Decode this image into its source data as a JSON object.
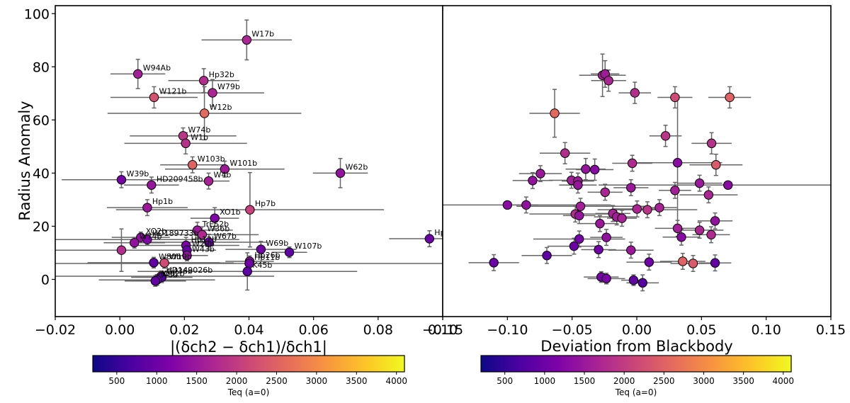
{
  "chart_data": [
    {
      "type": "scatter",
      "panel": "left",
      "xlabel": "|(δch2 − δch1)/δch1|",
      "ylabel": "Radius Anomaly",
      "xlim": [
        -0.02,
        0.1
      ],
      "ylim": [
        -14,
        103
      ],
      "xticks": [
        "−0.02",
        "0.00",
        "0.02",
        "0.04",
        "0.06",
        "0.08",
        "0.10"
      ],
      "xtick_values": [
        -0.02,
        0.0,
        0.02,
        0.04,
        0.06,
        0.08,
        0.1
      ],
      "yticks": [
        "0",
        "20",
        "40",
        "60",
        "80",
        "100"
      ],
      "ytick_values": [
        0,
        20,
        40,
        60,
        80,
        100
      ],
      "color_axis": "Teq (a=0)",
      "points": [
        {
          "label": "W17b",
          "x": 0.0393,
          "y": 90.1,
          "xerr": 0.014,
          "yerr": 7.5,
          "teq": 1700
        },
        {
          "label": "W94Ab",
          "x": 0.0056,
          "y": 77.3,
          "xerr": 0.0085,
          "yerr": 5.5,
          "teq": 1600
        },
        {
          "label": "Hp32b",
          "x": 0.026,
          "y": 74.8,
          "xerr": 0.011,
          "yerr": 4.5,
          "teq": 1800
        },
        {
          "label": "W79b",
          "x": 0.0287,
          "y": 70.2,
          "xerr": 0.016,
          "yerr": 5,
          "teq": 1700
        },
        {
          "label": "W121b",
          "x": 0.0106,
          "y": 68.5,
          "xerr": 0.0135,
          "yerr": 4,
          "teq": 2300
        },
        {
          "label": "W12b",
          "x": 0.0262,
          "y": 62.5,
          "xerr": 0.03,
          "yerr": 10,
          "teq": 2600
        },
        {
          "label": "W74b",
          "x": 0.0196,
          "y": 54.0,
          "xerr": 0.0165,
          "yerr": 3,
          "teq": 1900
        },
        {
          "label": "W1b",
          "x": 0.0204,
          "y": 51.2,
          "xerr": 0.019,
          "yerr": 4,
          "teq": 1850
        },
        {
          "label": "W103b",
          "x": 0.0225,
          "y": 43.1,
          "xerr": 0.01,
          "yerr": 3,
          "teq": 2500
        },
        {
          "label": "W101b",
          "x": 0.0325,
          "y": 41.5,
          "xerr": 0.0185,
          "yerr": 3,
          "teq": 1550
        },
        {
          "label": "W62b",
          "x": 0.0683,
          "y": 40.0,
          "xerr": 0.0085,
          "yerr": 5.5,
          "teq": 1400
        },
        {
          "label": "W39b",
          "x": 0.0005,
          "y": 37.5,
          "xerr": 0.0185,
          "yerr": 3,
          "teq": 1100
        },
        {
          "label": "W4b",
          "x": 0.0275,
          "y": 37.0,
          "xerr": 0.0065,
          "yerr": 3,
          "teq": 1650
        },
        {
          "label": "HD209458b",
          "x": 0.0098,
          "y": 35.5,
          "xerr": 0.0085,
          "yerr": 3,
          "teq": 1450
        },
        {
          "label": "Hp1b",
          "x": 0.0085,
          "y": 27.0,
          "xerr": 0.0125,
          "yerr": 3,
          "teq": 1500
        },
        {
          "label": "Hp7b",
          "x": 0.0403,
          "y": 26.2,
          "xerr": 0.0415,
          "yerr": 14,
          "teq": 2100
        },
        {
          "label": "XO1b",
          "x": 0.0294,
          "y": 23.0,
          "xerr": 0.0075,
          "yerr": 4,
          "teq": 1200
        },
        {
          "label": "TrES2b",
          "x": 0.024,
          "y": 18.5,
          "xerr": 0.011,
          "yerr": 3,
          "teq": 1500
        },
        {
          "label": "W36b",
          "x": 0.0255,
          "y": 16.8,
          "xerr": 0.0175,
          "yerr": 3,
          "teq": 1750
        },
        {
          "label": "XO2b",
          "x": 0.0065,
          "y": 15.8,
          "xerr": 0.009,
          "yerr": 2,
          "teq": 1400
        },
        {
          "label": "HD189733b",
          "x": 0.0085,
          "y": 15.0,
          "xerr": 0.0285,
          "yerr": 2,
          "teq": 1200
        },
        {
          "label": "W67b",
          "x": 0.0276,
          "y": 14.0,
          "xerr": 0.018,
          "yerr": 3,
          "teq": 1000
        },
        {
          "label": "W74b",
          "x": 0.0045,
          "y": 13.8,
          "xerr": 0.0095,
          "yerr": 2,
          "teq": 1400
        },
        {
          "label": "Hp12b",
          "x": 0.0205,
          "y": 12.8,
          "xerr": 0.0165,
          "yerr": 3,
          "teq": 1150
        },
        {
          "label": "W29b",
          "x": 0.0208,
          "y": 11.0,
          "xerr": 0.009,
          "yerr": 3,
          "teq": 950
        },
        {
          "label": "W69b",
          "x": 0.0437,
          "y": 11.3,
          "xerr": 0.011,
          "yerr": 3,
          "teq": 1050
        },
        {
          "label": "W107b",
          "x": 0.0525,
          "y": 10.2,
          "xerr": 0.0055,
          "yerr": 2,
          "teq": 850
        },
        {
          "label": "",
          "x": 0.0005,
          "y": 11.0,
          "xerr": 0.028,
          "yerr": 8,
          "teq": 1800
        },
        {
          "label": "W43b",
          "x": 0.0208,
          "y": 9.0,
          "xerr": 0.0065,
          "yerr": 2,
          "teq": 1400
        },
        {
          "label": "W80b",
          "x": 0.0105,
          "y": 6.3,
          "xerr": 0.0205,
          "yerr": 2,
          "teq": 900
        },
        {
          "label": "W19b",
          "x": 0.0138,
          "y": 6.2,
          "xerr": 0.0215,
          "yerr": 2,
          "teq": 2200
        },
        {
          "label": "Hp26b",
          "x": 0.0402,
          "y": 6.8,
          "xerr": 0.0075,
          "yerr": 2,
          "teq": 1350
        },
        {
          "label": "Hp11b",
          "x": 0.0401,
          "y": 6.0,
          "xerr": 0.08,
          "yerr": 2,
          "teq": 1050
        },
        {
          "label": "K45b",
          "x": 0.0395,
          "y": 3.0,
          "xerr": 0.034,
          "yerr": 7,
          "teq": 850
        },
        {
          "label": "HD149026b",
          "x": 0.0128,
          "y": 1.2,
          "xerr": 0.035,
          "yerr": 2,
          "teq": 1600
        },
        {
          "label": "G436b",
          "x": 0.013,
          "y": 0.8,
          "xerr": 0.0095,
          "yerr": 2,
          "teq": 750
        },
        {
          "label": "W52b",
          "x": 0.0115,
          "y": -0.2,
          "xerr": 0.018,
          "yerr": 2,
          "teq": 1100
        },
        {
          "label": "W8b",
          "x": 0.011,
          "y": -0.6,
          "xerr": 0.0095,
          "yerr": 2,
          "teq": 900
        },
        {
          "label": "Hp",
          "x": 0.0959,
          "y": 15.3,
          "xerr": 0.0125,
          "yerr": 3,
          "teq": 1000
        }
      ]
    },
    {
      "type": "scatter",
      "panel": "right",
      "xlabel": "Deviation from Blackbody",
      "ylabel": "",
      "xlim": [
        -0.15,
        0.15
      ],
      "ylim": [
        -14,
        103
      ],
      "xticks": [
        "−0.15",
        "−0.10",
        "−0.05",
        "0.00",
        "0.05",
        "0.10",
        "0.15"
      ],
      "xtick_values": [
        -0.15,
        -0.1,
        -0.05,
        0.0,
        0.05,
        0.1,
        0.15
      ],
      "color_axis": "Teq (a=0)",
      "points": [
        {
          "x": -0.0265,
          "y": 76.8,
          "xerr": 0.018,
          "yerr": 8,
          "teq": 1600
        },
        {
          "x": -0.0245,
          "y": 77.3,
          "xerr": 0.011,
          "yerr": 5,
          "teq": 1550
        },
        {
          "x": -0.0218,
          "y": 74.8,
          "xerr": 0.0135,
          "yerr": 4,
          "teq": 1700
        },
        {
          "x": -0.0015,
          "y": 70.2,
          "xerr": 0.0125,
          "yerr": 4,
          "teq": 1800
        },
        {
          "x": 0.0295,
          "y": 68.5,
          "xerr": 0.0135,
          "yerr": 4,
          "teq": 2200
        },
        {
          "x": 0.0718,
          "y": 68.5,
          "xerr": 0.0165,
          "yerr": 4,
          "teq": 2500
        },
        {
          "x": -0.0635,
          "y": 62.5,
          "xerr": 0.0195,
          "yerr": 9,
          "teq": 2600
        },
        {
          "x": 0.0222,
          "y": 54.0,
          "xerr": 0.0125,
          "yerr": 4,
          "teq": 1900
        },
        {
          "x": 0.0578,
          "y": 51.2,
          "xerr": 0.0155,
          "yerr": 4,
          "teq": 1850
        },
        {
          "x": -0.0555,
          "y": 47.5,
          "xerr": 0.0195,
          "yerr": 4,
          "teq": 1800
        },
        {
          "x": -0.0035,
          "y": 43.7,
          "xerr": 0.0155,
          "yerr": 3,
          "teq": 1750
        },
        {
          "x": 0.0315,
          "y": 43.9,
          "xerr": 0.0345,
          "yerr": 25,
          "teq": 1300
        },
        {
          "x": 0.0612,
          "y": 43.1,
          "xerr": 0.0205,
          "yerr": 4,
          "teq": 2400
        },
        {
          "x": -0.0395,
          "y": 41.5,
          "xerr": 0.0155,
          "yerr": 4,
          "teq": 1450
        },
        {
          "x": -0.0325,
          "y": 41.3,
          "xerr": 0.0145,
          "yerr": 4,
          "teq": 1300
        },
        {
          "x": -0.0745,
          "y": 39.8,
          "xerr": 0.0165,
          "yerr": 3,
          "teq": 1500
        },
        {
          "x": -0.0805,
          "y": 37.2,
          "xerr": 0.0155,
          "yerr": 3,
          "teq": 1400
        },
        {
          "x": -0.0505,
          "y": 37.3,
          "xerr": 0.0175,
          "yerr": 3,
          "teq": 1600
        },
        {
          "x": -0.0455,
          "y": 37.0,
          "xerr": 0.0125,
          "yerr": 3,
          "teq": 1550
        },
        {
          "x": -0.0455,
          "y": 35.5,
          "xerr": 0.0145,
          "yerr": 3,
          "teq": 1450
        },
        {
          "x": 0.0485,
          "y": 36.2,
          "xerr": 0.0175,
          "yerr": 3,
          "teq": 1500
        },
        {
          "x": -0.0045,
          "y": 34.5,
          "xerr": 0.0135,
          "yerr": 3,
          "teq": 1500
        },
        {
          "x": -0.0245,
          "y": 32.8,
          "xerr": 0.0135,
          "yerr": 3,
          "teq": 1700
        },
        {
          "x": 0.0295,
          "y": 33.5,
          "xerr": 0.0125,
          "yerr": 3,
          "teq": 1600
        },
        {
          "x": 0.0555,
          "y": 31.8,
          "xerr": 0.0225,
          "yerr": 3,
          "teq": 1700
        },
        {
          "x": -0.0855,
          "y": 28.0,
          "xerr": 0.0095,
          "yerr": 3,
          "teq": 1400
        },
        {
          "x": -0.0435,
          "y": 27.5,
          "xerr": 0.0495,
          "yerr": 3,
          "teq": 1600
        },
        {
          "x": 0.0002,
          "y": 26.5,
          "xerr": 0.0195,
          "yerr": 3,
          "teq": 1700
        },
        {
          "x": 0.0082,
          "y": 26.2,
          "xerr": 0.0385,
          "yerr": 3,
          "teq": 1900
        },
        {
          "x": 0.0175,
          "y": 27.0,
          "xerr": 0.0135,
          "yerr": 3,
          "teq": 1650
        },
        {
          "x": -0.0475,
          "y": 24.6,
          "xerr": 0.0355,
          "yerr": 3,
          "teq": 1800
        },
        {
          "x": -0.0445,
          "y": 24.0,
          "xerr": 0.0125,
          "yerr": 3,
          "teq": 1450
        },
        {
          "x": -0.0185,
          "y": 24.8,
          "xerr": 0.0135,
          "yerr": 3,
          "teq": 1650
        },
        {
          "x": -0.0155,
          "y": 23.5,
          "xerr": 0.0175,
          "yerr": 3,
          "teq": 1600
        },
        {
          "x": -0.0115,
          "y": 23.0,
          "xerr": 0.0115,
          "yerr": 3,
          "teq": 1650
        },
        {
          "x": 0.0605,
          "y": 22.0,
          "xerr": 0.0135,
          "yerr": 3,
          "teq": 1400
        },
        {
          "x": -0.0285,
          "y": 21.0,
          "xerr": 0.0145,
          "yerr": 3,
          "teq": 1500
        },
        {
          "x": 0.0315,
          "y": 19.2,
          "xerr": 0.0175,
          "yerr": 3,
          "teq": 1600
        },
        {
          "x": 0.0485,
          "y": 18.5,
          "xerr": 0.0185,
          "yerr": 3,
          "teq": 1700
        },
        {
          "x": 0.0575,
          "y": 16.8,
          "xerr": 0.0145,
          "yerr": 3,
          "teq": 1750
        },
        {
          "x": -0.0235,
          "y": 15.8,
          "xerr": 0.0125,
          "yerr": 3,
          "teq": 1400
        },
        {
          "x": 0.0345,
          "y": 15.9,
          "xerr": 0.0145,
          "yerr": 3,
          "teq": 1300
        },
        {
          "x": -0.0445,
          "y": 15.2,
          "xerr": 0.0355,
          "yerr": 3,
          "teq": 1100
        },
        {
          "x": -0.0485,
          "y": 12.5,
          "xerr": 0.0205,
          "yerr": 3,
          "teq": 1000
        },
        {
          "x": -0.0295,
          "y": 11.2,
          "xerr": 0.0135,
          "yerr": 3,
          "teq": 1050
        },
        {
          "x": -0.0045,
          "y": 11.0,
          "xerr": 0.0175,
          "yerr": 3,
          "teq": 1500
        },
        {
          "x": -0.0695,
          "y": 9.0,
          "xerr": 0.0195,
          "yerr": 3,
          "teq": 900
        },
        {
          "x": -0.1105,
          "y": 6.3,
          "xerr": 0.0195,
          "yerr": 3,
          "teq": 1000
        },
        {
          "x": 0.0095,
          "y": 6.5,
          "xerr": 0.0175,
          "yerr": 3,
          "teq": 1050
        },
        {
          "x": 0.0355,
          "y": 6.8,
          "xerr": 0.0175,
          "yerr": 3,
          "teq": 2500
        },
        {
          "x": 0.0435,
          "y": 6.0,
          "xerr": 0.0175,
          "yerr": 3,
          "teq": 2400
        },
        {
          "x": 0.0605,
          "y": 6.2,
          "xerr": 0.0125,
          "yerr": 3,
          "teq": 900
        },
        {
          "x": -0.0275,
          "y": 0.9,
          "xerr": 0.0135,
          "yerr": 2,
          "teq": 1100
        },
        {
          "x": -0.0235,
          "y": 0.3,
          "xerr": 0.0145,
          "yerr": 2,
          "teq": 1150
        },
        {
          "x": -0.0025,
          "y": -0.3,
          "xerr": 0.0095,
          "yerr": 2,
          "teq": 900
        },
        {
          "x": 0.0045,
          "y": -1.3,
          "xerr": 0.0125,
          "yerr": 3,
          "teq": 800
        },
        {
          "x": 0.0705,
          "y": 35.5,
          "xerr": 0.1,
          "yerr": 0,
          "teq": 1300
        },
        {
          "x": -0.1,
          "y": 28.0,
          "xerr": 0.08,
          "yerr": 0,
          "teq": 1300
        }
      ]
    }
  ],
  "colorbars": [
    {
      "label": "Teq (a=0)",
      "range": [
        200,
        4100
      ],
      "ticks": [
        "500",
        "1000",
        "1500",
        "2000",
        "2500",
        "3000",
        "3500",
        "4000"
      ],
      "tick_values": [
        500,
        1000,
        1500,
        2000,
        2500,
        3000,
        3500,
        4000
      ]
    },
    {
      "label": "Teq (a=0)",
      "range": [
        200,
        4100
      ],
      "ticks": [
        "500",
        "1000",
        "1500",
        "2000",
        "2500",
        "3000",
        "3500",
        "4000"
      ],
      "tick_values": [
        500,
        1000,
        1500,
        2000,
        2500,
        3000,
        3500,
        4000
      ]
    }
  ],
  "colors": {
    "errorbar": "#666666",
    "axes": "#000000",
    "marker_edge": "#000000",
    "colormap": "plasma"
  }
}
